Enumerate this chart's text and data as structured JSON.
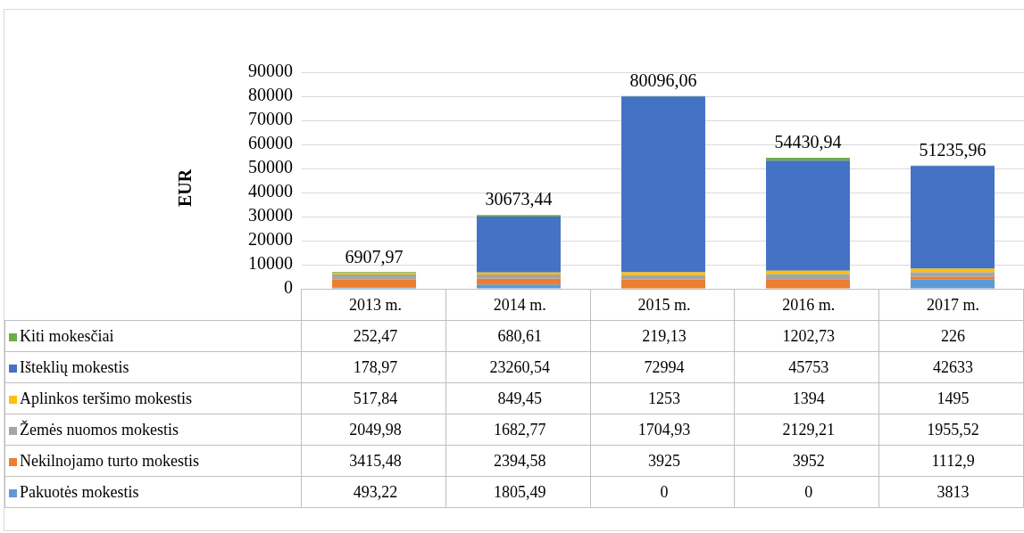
{
  "chart_data": {
    "type": "bar",
    "stacked": true,
    "ylabel": "EUR",
    "categories": [
      "2013 m.",
      "2014 m.",
      "2015 m.",
      "2016 m.",
      "2017 m."
    ],
    "ylim": [
      0,
      90000
    ],
    "yticks": [
      0,
      10000,
      20000,
      30000,
      40000,
      50000,
      60000,
      70000,
      80000,
      90000
    ],
    "grid": "y",
    "legend": "bottom",
    "series": [
      {
        "name": "Pakuotės mokestis",
        "color": "#5b9bd5",
        "values": [
          493.22,
          1805.49,
          0,
          0,
          3813
        ],
        "value_labels": [
          "493,22",
          "1805,49",
          "0",
          "0",
          "3813"
        ]
      },
      {
        "name": "Nekilnojamo turto mokestis",
        "color": "#ed7d31",
        "values": [
          3415.48,
          2394.58,
          3925,
          3952,
          1112.9
        ],
        "value_labels": [
          "3415,48",
          "2394,58",
          "3925",
          "3952",
          "1112,9"
        ]
      },
      {
        "name": "Žemės nuomos mokestis",
        "color": "#a5a5a5",
        "values": [
          2049.98,
          1682.77,
          1704.93,
          2129.21,
          1955.52
        ],
        "value_labels": [
          "2049,98",
          "1682,77",
          "1704,93",
          "2129,21",
          "1955,52"
        ]
      },
      {
        "name": "Aplinkos teršimo mokestis",
        "color": "#ffc000",
        "values": [
          517.84,
          849.45,
          1253,
          1394,
          1495
        ],
        "value_labels": [
          "517,84",
          "849,45",
          "1253",
          "1394",
          "1495"
        ]
      },
      {
        "name": "Išteklių mokestis",
        "color": "#4472c4",
        "values": [
          178.97,
          23260.54,
          72994,
          45753,
          42633
        ],
        "value_labels": [
          "178,97",
          "23260,54",
          "72994",
          "45753",
          "42633"
        ]
      },
      {
        "name": "Kiti mokesčiai",
        "color": "#70ad47",
        "values": [
          252.47,
          680.61,
          219.13,
          1202.73,
          226
        ],
        "value_labels": [
          "252,47",
          "680,61",
          "219,13",
          "1202,73",
          "226"
        ]
      }
    ],
    "totals": [
      "6907,97",
      "30673,44",
      "80096,06",
      "54430,94",
      null
    ],
    "annotations": [
      {
        "text": "51235,96",
        "x": "2017 m.",
        "y": 51235.42
      }
    ]
  }
}
